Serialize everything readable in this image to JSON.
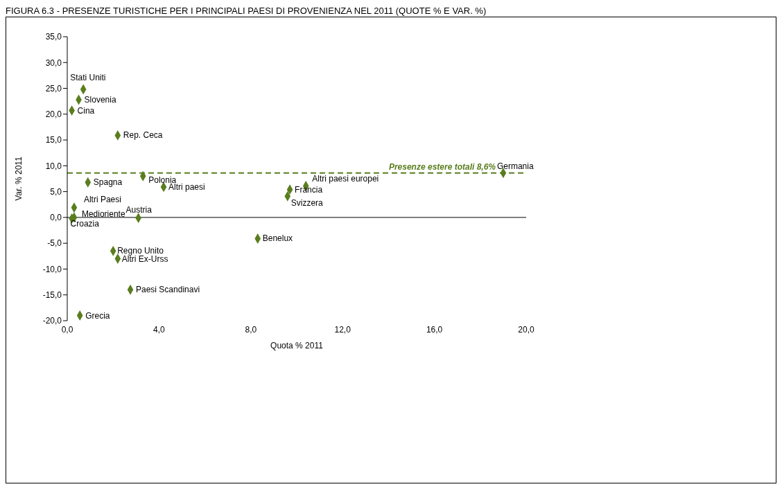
{
  "chart_data": {
    "type": "scatter",
    "title": "FIGURA 6.3 - PRESENZE TURISTICHE PER I PRINCIPALI PAESI DI PROVENIENZA NEL 2011 (QUOTE % E VAR. %)",
    "xlabel": "Quota % 2011",
    "ylabel": "Var. % 2011",
    "x": [
      0.7,
      0.5,
      0.2,
      2.2,
      3.3,
      4.2,
      0.9,
      0.3,
      0.3,
      0.2,
      3.1,
      2.0,
      2.2,
      2.75,
      0.55,
      8.3,
      9.6,
      9.7,
      10.4,
      19.0
    ],
    "series": [
      {
        "color": "#5a7d1e",
        "values": [
          24.8,
          22.8,
          20.7,
          15.9,
          8.0,
          5.9,
          6.8,
          1.9,
          0.0,
          -0.2,
          -0.1,
          -6.5,
          -8.0,
          -14.0,
          -19.0,
          -4.1,
          4.1,
          5.4,
          6.1,
          8.6
        ]
      }
    ],
    "annotations": [
      {
        "text": "Stati Uniti",
        "x": 0.7,
        "y": 24.8
      },
      {
        "text": "Slovenia",
        "x": 0.5,
        "y": 22.8
      },
      {
        "text": "Cina",
        "x": 0.2,
        "y": 20.7
      },
      {
        "text": "Rep. Ceca",
        "x": 2.2,
        "y": 15.9
      },
      {
        "text": "Polonia",
        "x": 3.3,
        "y": 8.0
      },
      {
        "text": "Altri paesi",
        "x": 4.2,
        "y": 5.9
      },
      {
        "text": "Spagna",
        "x": 0.9,
        "y": 6.8
      },
      {
        "text": "Altri Paesi",
        "x": 0.3,
        "y": 1.9
      },
      {
        "text": "Medioriente",
        "x": 0.3,
        "y": 0.0
      },
      {
        "text": "Croazia",
        "x": 0.2,
        "y": -0.2
      },
      {
        "text": "Austria",
        "x": 3.1,
        "y": -0.1
      },
      {
        "text": "Regno Unito",
        "x": 2.0,
        "y": -6.5
      },
      {
        "text": "Altri Ex-Urss",
        "x": 2.2,
        "y": -8.0
      },
      {
        "text": "Paesi Scandinavi",
        "x": 2.75,
        "y": -14.0
      },
      {
        "text": "Grecia",
        "x": 0.55,
        "y": -19.0
      },
      {
        "text": "Benelux",
        "x": 8.3,
        "y": -4.1
      },
      {
        "text": "Svizzera",
        "x": 9.6,
        "y": 4.1
      },
      {
        "text": "Francia",
        "x": 9.7,
        "y": 5.4
      },
      {
        "text": "Altri paesi europei",
        "x": 10.4,
        "y": 6.1
      },
      {
        "text": "Germania",
        "x": 19.0,
        "y": 8.6
      }
    ],
    "ref_lines": [
      {
        "axis": "y",
        "value": 0,
        "color": "#000000",
        "line_style": "solid"
      },
      {
        "axis": "y",
        "value": 8.6,
        "label": "Presenze estere totali 8,6%",
        "color": "#5a7d1e",
        "line_style": "dashed"
      }
    ],
    "xlim": [
      0,
      20
    ],
    "xticks": [
      {
        "value": 0,
        "label": "0,0"
      },
      {
        "value": 4,
        "label": "4,0"
      },
      {
        "value": 8,
        "label": "8,0"
      },
      {
        "value": 12,
        "label": "12,0"
      },
      {
        "value": 16,
        "label": "16,0"
      },
      {
        "value": 20,
        "label": "20,0"
      }
    ],
    "ylim": [
      -20,
      35
    ],
    "yticks": [
      {
        "value": -20,
        "label": "-20,0"
      },
      {
        "value": -15,
        "label": "-15,0"
      },
      {
        "value": -10,
        "label": "-10,0"
      },
      {
        "value": -5,
        "label": "-5,0"
      },
      {
        "value": 0,
        "label": "0,0"
      },
      {
        "value": 5,
        "label": "5,0"
      },
      {
        "value": 10,
        "label": "10,0"
      },
      {
        "value": 15,
        "label": "15,0"
      },
      {
        "value": 20,
        "label": "20,0"
      },
      {
        "value": 25,
        "label": "25,0"
      },
      {
        "value": 30,
        "label": "30,0"
      },
      {
        "value": 35,
        "label": "35,0"
      }
    ],
    "grid": false,
    "legend": false,
    "marker": "diamond"
  }
}
